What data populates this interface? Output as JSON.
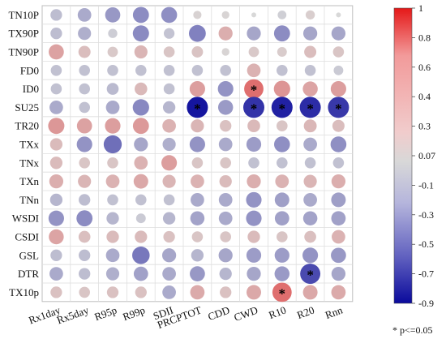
{
  "chart_data": {
    "type": "heatmap",
    "rows": [
      "TN10P",
      "TX90P",
      "TN90P",
      "FD0",
      "ID0",
      "SU25",
      "TR20",
      "TXx",
      "TNx",
      "TXn",
      "TNn",
      "WSDI",
      "CSDI",
      "GSL",
      "DTR",
      "TX10p"
    ],
    "columns": [
      "Rx1day",
      "Rx5day",
      "R95p",
      "R99p",
      "SDII",
      "PRCPTOT",
      "CDD",
      "CWD",
      "R10",
      "R20",
      "Rnn"
    ],
    "values": [
      [
        -0.12,
        -0.2,
        -0.28,
        -0.33,
        -0.32,
        0.03,
        0.02,
        0.0,
        -0.04,
        0.05,
        0.0
      ],
      [
        -0.12,
        -0.18,
        -0.05,
        -0.34,
        -0.09,
        -0.38,
        0.22,
        -0.22,
        -0.33,
        -0.22,
        -0.22
      ],
      [
        0.28,
        0.14,
        0.08,
        0.18,
        0.1,
        0.11,
        0.02,
        0.08,
        0.06,
        0.14,
        0.1
      ],
      [
        -0.1,
        -0.1,
        -0.1,
        -0.1,
        -0.1,
        -0.1,
        -0.1,
        0.2,
        -0.1,
        -0.1,
        -0.06
      ],
      [
        -0.1,
        -0.1,
        -0.13,
        0.16,
        -0.1,
        0.3,
        -0.3,
        0.55,
        0.35,
        0.27,
        0.3
      ],
      [
        -0.2,
        -0.1,
        -0.2,
        -0.35,
        -0.15,
        -0.85,
        -0.27,
        -0.72,
        -0.8,
        -0.75,
        -0.7
      ],
      [
        0.34,
        0.28,
        0.3,
        0.33,
        0.2,
        0.18,
        0.12,
        0.16,
        0.1,
        0.17,
        0.14
      ],
      [
        0.15,
        -0.3,
        -0.46,
        -0.22,
        -0.18,
        -0.3,
        -0.2,
        -0.26,
        -0.32,
        -0.2,
        -0.32
      ],
      [
        0.15,
        0.1,
        0.1,
        0.2,
        0.3,
        0.1,
        0.1,
        -0.1,
        -0.1,
        -0.1,
        -0.1
      ],
      [
        0.22,
        0.18,
        0.2,
        0.25,
        0.18,
        0.2,
        0.15,
        0.22,
        0.2,
        0.18,
        0.22
      ],
      [
        -0.15,
        -0.12,
        -0.1,
        -0.1,
        -0.1,
        -0.2,
        -0.2,
        -0.3,
        -0.25,
        -0.2,
        -0.25
      ],
      [
        -0.3,
        -0.33,
        -0.15,
        -0.06,
        -0.15,
        -0.23,
        -0.2,
        -0.3,
        -0.24,
        -0.23,
        -0.24
      ],
      [
        0.27,
        0.13,
        0.15,
        0.15,
        0.12,
        0.1,
        0.1,
        0.15,
        0.1,
        0.13,
        0.2
      ],
      [
        -0.12,
        -0.12,
        -0.2,
        -0.42,
        -0.22,
        -0.15,
        -0.22,
        -0.26,
        -0.26,
        -0.3,
        -0.28
      ],
      [
        -0.2,
        -0.12,
        -0.18,
        -0.24,
        -0.2,
        -0.28,
        -0.15,
        -0.22,
        -0.27,
        -0.62,
        -0.22
      ],
      [
        0.12,
        0.1,
        0.12,
        0.12,
        -0.2,
        0.24,
        0.12,
        0.25,
        0.55,
        0.25,
        0.24
      ]
    ],
    "significant": [
      [
        5,
        5
      ],
      [
        5,
        7
      ],
      [
        5,
        8
      ],
      [
        5,
        9
      ],
      [
        5,
        10
      ],
      [
        4,
        7
      ],
      [
        14,
        9
      ],
      [
        15,
        8
      ]
    ],
    "significance_marker": "*",
    "significance_note": "* p<=0.05",
    "colorbar": {
      "ticks": [
        1,
        0.8,
        0.6,
        0.4,
        0.3,
        0.07,
        -0.1,
        -0.3,
        -0.5,
        -0.7,
        -0.9
      ],
      "range": [
        -0.9,
        1
      ],
      "colors": {
        "negative": "#0a0a9c",
        "mid": "#d8d8d8",
        "positive": "#e51818"
      }
    },
    "grid": true
  }
}
